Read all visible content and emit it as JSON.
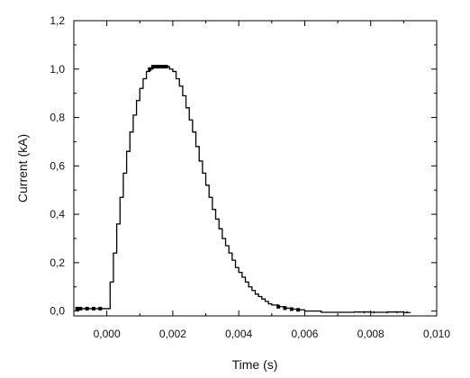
{
  "chart_data": {
    "type": "line",
    "title": "",
    "xlabel": "Time (s)",
    "ylabel": "Current (kA)",
    "xlim": [
      -0.001,
      0.01
    ],
    "ylim": [
      -0.02,
      1.2
    ],
    "x_ticks": [
      {
        "value": 0.0,
        "label": "0,000"
      },
      {
        "value": 0.002,
        "label": "0,002"
      },
      {
        "value": 0.004,
        "label": "0,004"
      },
      {
        "value": 0.006,
        "label": "0,006"
      },
      {
        "value": 0.008,
        "label": "0,008"
      },
      {
        "value": 0.01,
        "label": "0,010"
      }
    ],
    "y_ticks": [
      {
        "value": 0.0,
        "label": "0,0"
      },
      {
        "value": 0.2,
        "label": "0,2"
      },
      {
        "value": 0.4,
        "label": "0,4"
      },
      {
        "value": 0.6,
        "label": "0,6"
      },
      {
        "value": 0.8,
        "label": "0,8"
      },
      {
        "value": 1.0,
        "label": "1,0"
      },
      {
        "value": 1.2,
        "label": "1,2"
      }
    ],
    "grid": false,
    "legend": "none",
    "series": [
      {
        "color": "#000000",
        "step": true,
        "x": [
          -0.0009,
          -0.0008,
          -0.0006,
          -0.0004,
          -0.0002,
          0.0,
          0.0001,
          0.0002,
          0.0003,
          0.0004,
          0.0005,
          0.0006,
          0.0007,
          0.0008,
          0.0009,
          0.001,
          0.0011,
          0.0012,
          0.0013,
          0.0014,
          0.0015,
          0.0016,
          0.0017,
          0.0018,
          0.0019,
          0.002,
          0.0021,
          0.0022,
          0.0023,
          0.0024,
          0.0025,
          0.0026,
          0.0027,
          0.0028,
          0.0029,
          0.003,
          0.0031,
          0.0032,
          0.0033,
          0.0034,
          0.0035,
          0.0036,
          0.0037,
          0.0038,
          0.0039,
          0.004,
          0.0041,
          0.0042,
          0.0043,
          0.0044,
          0.0045,
          0.0046,
          0.0047,
          0.0048,
          0.0049,
          0.005,
          0.0052,
          0.0054,
          0.0056,
          0.0058,
          0.006,
          0.0065,
          0.007,
          0.0075,
          0.008,
          0.0085,
          0.009,
          0.0092
        ],
        "y": [
          0.01,
          0.01,
          0.01,
          0.01,
          0.01,
          0.01,
          0.12,
          0.24,
          0.36,
          0.47,
          0.57,
          0.66,
          0.74,
          0.81,
          0.87,
          0.92,
          0.96,
          0.99,
          1.0,
          1.01,
          1.01,
          1.01,
          1.01,
          1.01,
          1.0,
          0.99,
          0.96,
          0.93,
          0.89,
          0.84,
          0.79,
          0.74,
          0.68,
          0.62,
          0.57,
          0.52,
          0.47,
          0.42,
          0.38,
          0.34,
          0.3,
          0.27,
          0.24,
          0.21,
          0.18,
          0.16,
          0.14,
          0.12,
          0.1,
          0.085,
          0.07,
          0.06,
          0.05,
          0.04,
          0.03,
          0.025,
          0.018,
          0.012,
          0.008,
          0.005,
          0.0,
          -0.005,
          -0.005,
          -0.004,
          -0.005,
          -0.004,
          -0.006,
          -0.005
        ]
      }
    ]
  }
}
